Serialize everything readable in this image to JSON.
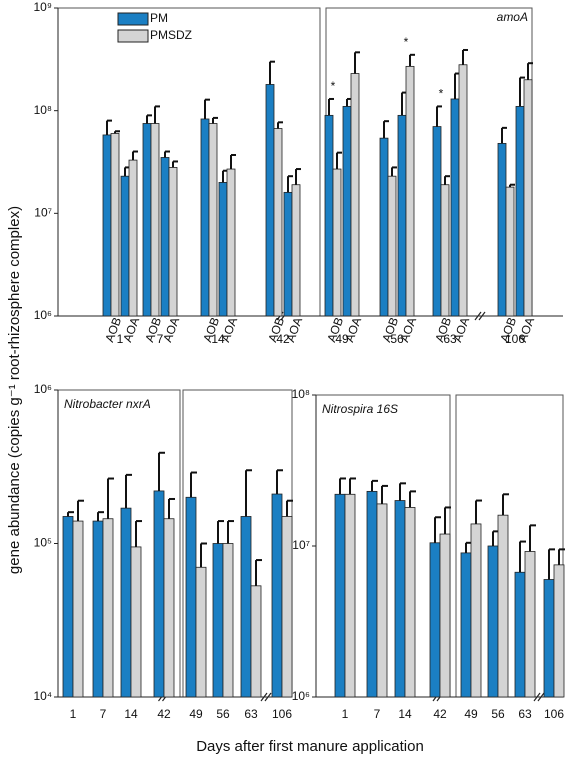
{
  "figure": {
    "ylabel": "gene abundance (copies g⁻¹ root-rhizosphere complex)",
    "xlabel": "Days after first manure application"
  },
  "chart_data": [
    {
      "type": "bar",
      "label": "amoA",
      "log_scale": true,
      "ylim": [
        1000000,
        1000000000
      ],
      "yticks": [
        {
          "value": 1000000,
          "label": "10⁶"
        },
        {
          "value": 10000000,
          "label": "10⁷"
        },
        {
          "value": 100000000,
          "label": "10⁸"
        },
        {
          "value": 1000000000,
          "label": "10⁹"
        }
      ],
      "categories": [
        "1",
        "7",
        "14",
        "42",
        "49",
        "56",
        "63",
        "106"
      ],
      "genes": [
        "AOB",
        "AOA"
      ],
      "series": [
        {
          "name": "PM",
          "color": "#1b7fc3",
          "values": [
            [
              58000000,
              23000000
            ],
            [
              75000000,
              35000000
            ],
            [
              83000000,
              20000000
            ],
            [
              180000000,
              16000000
            ],
            [
              90000000,
              110000000
            ],
            [
              54000000,
              90000000
            ],
            [
              70000000,
              130000000
            ],
            [
              48000000,
              110000000
            ]
          ],
          "errors": [
            [
              22000000,
              5000000
            ],
            [
              15000000,
              5000000
            ],
            [
              45000000,
              6000000
            ],
            [
              120000000,
              7000000
            ],
            [
              40000000,
              20000000
            ],
            [
              25000000,
              60000000
            ],
            [
              40000000,
              100000000
            ],
            [
              20000000,
              100000000
            ]
          ]
        },
        {
          "name": "PMSDZ",
          "color": "#d4d4d4",
          "values": [
            [
              60000000,
              33000000
            ],
            [
              75000000,
              28000000
            ],
            [
              75000000,
              27000000
            ],
            [
              67000000,
              19000000
            ],
            [
              27000000,
              230000000
            ],
            [
              23000000,
              270000000
            ],
            [
              19000000,
              280000000
            ],
            [
              18000000,
              200000000
            ]
          ],
          "errors": [
            [
              3000000,
              7000000
            ],
            [
              35000000,
              4000000
            ],
            [
              10000000,
              10000000
            ],
            [
              10000000,
              8000000
            ],
            [
              12000000,
              140000000
            ],
            [
              5000000,
              80000000
            ],
            [
              4000000,
              110000000
            ],
            [
              1000000,
              90000000
            ]
          ]
        }
      ],
      "significance": [
        [
          null,
          null
        ],
        [
          null,
          null
        ],
        [
          null,
          null
        ],
        [
          null,
          null
        ],
        [
          "*",
          null
        ],
        [
          null,
          "*"
        ],
        [
          "*",
          null
        ],
        [
          null,
          null
        ]
      ]
    },
    {
      "type": "bar",
      "label": "Nitrobacter nxrA",
      "log_scale": true,
      "ylim": [
        10000,
        1000000
      ],
      "yticks": [
        {
          "value": 10000,
          "label": "10⁴"
        },
        {
          "value": 100000,
          "label": "10⁵"
        },
        {
          "value": 1000000,
          "label": "10⁶"
        }
      ],
      "categories": [
        "1",
        "7",
        "14",
        "42",
        "49",
        "56",
        "63",
        "106"
      ],
      "series": [
        {
          "name": "PM",
          "color": "#1b7fc3",
          "values": [
            150000,
            140000,
            170000,
            220000,
            200000,
            100000,
            150000,
            210000
          ],
          "errors": [
            10000,
            20000,
            110000,
            170000,
            90000,
            40000,
            150000,
            90000
          ]
        },
        {
          "name": "PMSDZ",
          "color": "#d4d4d4",
          "values": [
            140000,
            145000,
            95000,
            145000,
            70000,
            100000,
            53000,
            150000
          ],
          "errors": [
            50000,
            120000,
            45000,
            50000,
            30000,
            40000,
            25000,
            40000
          ]
        }
      ]
    },
    {
      "type": "bar",
      "label": "Nitrospira 16S",
      "log_scale": true,
      "ylim": [
        1000000,
        100000000
      ],
      "yticks": [
        {
          "value": 1000000,
          "label": "10⁶"
        },
        {
          "value": 10000000,
          "label": "10⁷"
        },
        {
          "value": 100000000,
          "label": "10⁸"
        }
      ],
      "categories": [
        "1",
        "7",
        "14",
        "42",
        "49",
        "56",
        "63",
        "106"
      ],
      "series": [
        {
          "name": "PM",
          "color": "#1b7fc3",
          "values": [
            22000000,
            23000000,
            20000000,
            10500000,
            9000000,
            10000000,
            6700000,
            6000000
          ],
          "errors": [
            6000000,
            4000000,
            6000000,
            5000000,
            1500000,
            2500000,
            4000000,
            3500000
          ]
        },
        {
          "name": "PMSDZ",
          "color": "#d4d4d4",
          "values": [
            22000000,
            19000000,
            18000000,
            12000000,
            14000000,
            16000000,
            9200000,
            7500000
          ],
          "errors": [
            6000000,
            6000000,
            5000000,
            6000000,
            6000000,
            6000000,
            4500000,
            2000000
          ]
        }
      ]
    }
  ]
}
